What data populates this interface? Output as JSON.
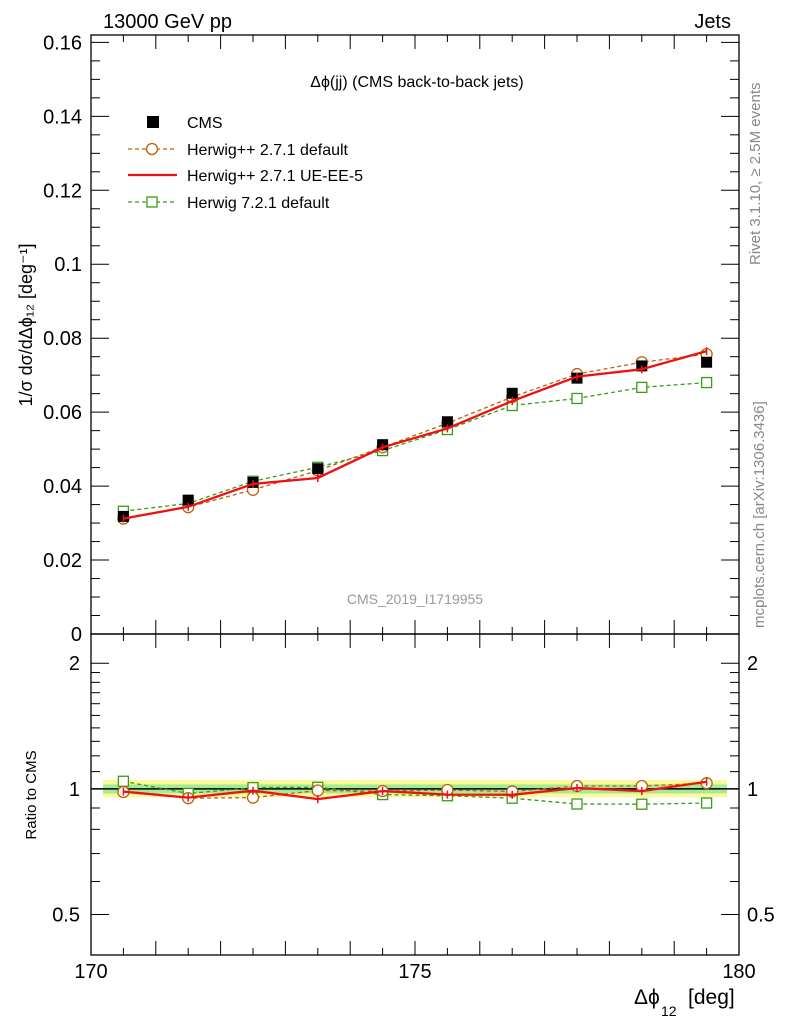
{
  "header": {
    "left": "13000 GeV pp",
    "right": "Jets"
  },
  "side_labels": {
    "rivet": "Rivet 3.1.10, ≥ 2.5M events",
    "mcplots": "mcplots.cern.ch [arXiv:1306.3436]"
  },
  "analysis_id": "CMS_2019_I1719955",
  "colors": {
    "cms": "#000000",
    "herwigpp_default": "#b8620c",
    "herwigpp_ue": "#ee1111",
    "herwig7": "#3a9a1a"
  },
  "chart_data": [
    {
      "type": "scatter",
      "panel": "main",
      "title": "Δϕ(jj) (CMS back-to-back jets)",
      "xlabel": "Δϕ",
      "xlabel_sub": "12",
      "xlabel_unit": "[deg]",
      "ylabel": "1/σ dσ/dΔϕ₁₂ [deg⁻¹]",
      "xlim": [
        170,
        180
      ],
      "ylim": [
        0,
        0.162
      ],
      "x_ticks": [
        "170",
        "175",
        "180"
      ],
      "y_ticks": [
        "0",
        "0.02",
        "0.04",
        "0.06",
        "0.08",
        "0.1",
        "0.12",
        "0.14",
        "0.16"
      ],
      "legend_position": "top-left",
      "x": [
        170.5,
        171.5,
        172.5,
        173.5,
        174.5,
        175.5,
        176.5,
        177.5,
        178.5,
        179.5
      ],
      "series": [
        {
          "name": "CMS",
          "style": "data",
          "values": [
            0.0318,
            0.0362,
            0.041,
            0.0447,
            0.0512,
            0.0574,
            0.0651,
            0.0692,
            0.0725,
            0.0735
          ]
        },
        {
          "name": "Herwig++ 2.7.1 default",
          "style": "circle-dashed",
          "values": [
            0.0312,
            0.0343,
            0.039,
            0.0442,
            0.0505,
            0.057,
            0.0641,
            0.0703,
            0.0735,
            0.0757
          ]
        },
        {
          "name": "Herwig++ 2.7.1 UE-EE-5",
          "style": "solid",
          "values": [
            0.0312,
            0.0344,
            0.0406,
            0.0422,
            0.0505,
            0.0556,
            0.063,
            0.0696,
            0.0716,
            0.0765
          ]
        },
        {
          "name": "Herwig 7.2.1 default",
          "style": "square-dashed",
          "values": [
            0.0332,
            0.0353,
            0.0413,
            0.0451,
            0.0496,
            0.0553,
            0.0618,
            0.0637,
            0.0667,
            0.068
          ]
        }
      ]
    },
    {
      "type": "line",
      "panel": "ratio",
      "ylabel": "Ratio to CMS",
      "xlim": [
        170,
        180
      ],
      "ylim": [
        0.4,
        2.35
      ],
      "y_scale": "log",
      "y_ticks": [
        "0.5",
        "1",
        "2"
      ],
      "x": [
        170.5,
        171.5,
        172.5,
        173.5,
        174.5,
        175.5,
        176.5,
        177.5,
        178.5,
        179.5
      ],
      "band_inner": [
        0.975,
        1.025
      ],
      "band_outer": [
        0.955,
        1.05
      ],
      "series": [
        {
          "name": "Herwig++ 2.7.1 default",
          "values": [
            0.983,
            0.95,
            0.953,
            0.991,
            0.988,
            0.994,
            0.986,
            1.016,
            1.016,
            1.032
          ]
        },
        {
          "name": "Herwig++ 2.7.1 UE-EE-5",
          "values": [
            0.985,
            0.953,
            0.99,
            0.945,
            0.988,
            0.969,
            0.968,
            1.005,
            0.988,
            1.04
          ]
        },
        {
          "name": "Herwig 7.2.1 default",
          "values": [
            1.043,
            0.975,
            1.007,
            1.009,
            0.969,
            0.963,
            0.95,
            0.92,
            0.919,
            0.925
          ]
        }
      ]
    }
  ]
}
